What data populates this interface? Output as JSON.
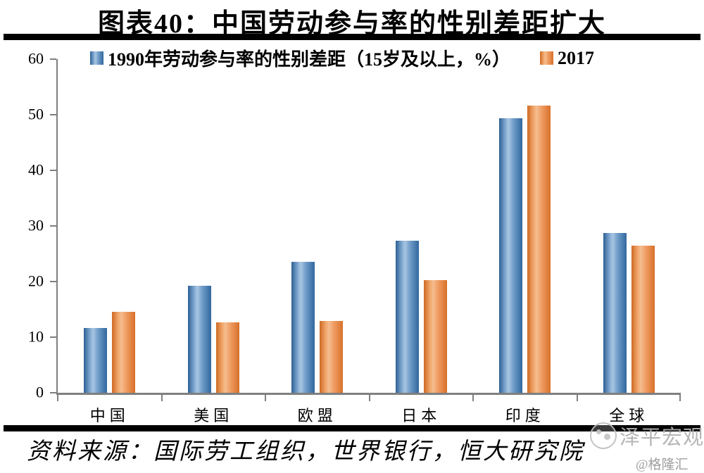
{
  "page": {
    "title": "图表40：中国劳动参与率的性别差距扩大",
    "source": "资料来源：国际劳工组织，世界银行，恒大研究院",
    "watermark_brand": "泽平宏观",
    "watermark_handle": "@格隆汇"
  },
  "colors": {
    "series_1990_blue": "#3a70a8",
    "series_2017_orange": "#e07b36",
    "axis_gray": "#7f7f7f",
    "divider_black": "#000000",
    "watermark_gray": "#b0b0b0"
  },
  "chart_data": {
    "type": "bar",
    "title": "图表40：中国劳动参与率的性别差距扩大",
    "categories": [
      "中国",
      "美国",
      "欧盟",
      "日本",
      "印度",
      "全球"
    ],
    "series": [
      {
        "name": "1990年劳动参与率的性别差距（15岁及以上，%）",
        "color": "#3a70a8",
        "values": [
          11.6,
          19.3,
          23.5,
          27.3,
          49.4,
          28.7
        ]
      },
      {
        "name": "2017",
        "color": "#e07b36",
        "values": [
          14.6,
          12.6,
          12.9,
          20.2,
          51.6,
          26.4
        ]
      }
    ],
    "xlabel": "",
    "ylabel": "",
    "ylim": [
      0,
      60
    ],
    "yticks": [
      0,
      10,
      20,
      30,
      40,
      50,
      60
    ],
    "legend_position": "top",
    "grid": false
  }
}
